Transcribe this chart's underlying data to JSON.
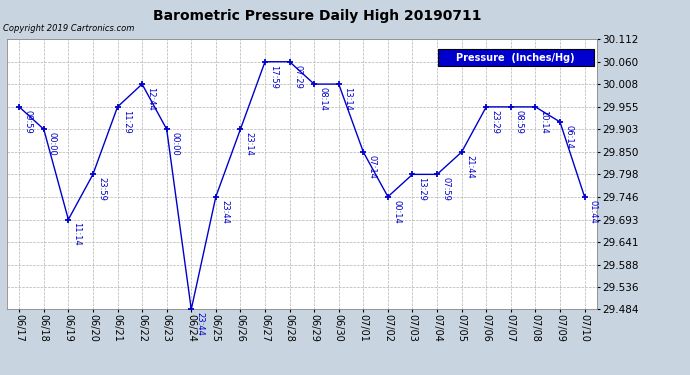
{
  "title": "Barometric Pressure Daily High 20190711",
  "copyright": "Copyright 2019 Cartronics.com",
  "legend_label": "Pressure  (Inches/Hg)",
  "line_color": "#0000CC",
  "bg_color": "#c8d4e0",
  "plot_bg_color": "#ffffff",
  "grid_color": "#aaaaaa",
  "dates": [
    "06/17",
    "06/18",
    "06/19",
    "06/20",
    "06/21",
    "06/22",
    "06/23",
    "06/24",
    "06/25",
    "06/26",
    "06/27",
    "06/28",
    "06/29",
    "06/30",
    "07/01",
    "07/02",
    "07/03",
    "07/04",
    "07/05",
    "07/06",
    "07/07",
    "07/08",
    "07/09",
    "07/10"
  ],
  "values": [
    29.955,
    29.903,
    29.693,
    29.798,
    29.955,
    30.008,
    29.903,
    29.484,
    29.746,
    29.903,
    30.06,
    30.06,
    30.008,
    30.008,
    29.85,
    29.746,
    29.798,
    29.798,
    29.85,
    29.955,
    29.955,
    29.955,
    29.92,
    29.746
  ],
  "labels": [
    "09:59",
    "00:00",
    "11:14",
    "23:59",
    "11:29",
    "12:44",
    "00:00",
    "23:44",
    "23:44",
    "23:14",
    "17:59",
    "07:29",
    "08:14",
    "13:14",
    "07:14",
    "00:14",
    "13:29",
    "07:59",
    "21:44",
    "23:29",
    "08:59",
    "10:14",
    "06:14",
    "01:44"
  ],
  "ylim_min": 29.484,
  "ylim_max": 30.112,
  "yticks": [
    29.484,
    29.536,
    29.588,
    29.641,
    29.693,
    29.746,
    29.798,
    29.85,
    29.903,
    29.955,
    30.008,
    30.06,
    30.112
  ]
}
